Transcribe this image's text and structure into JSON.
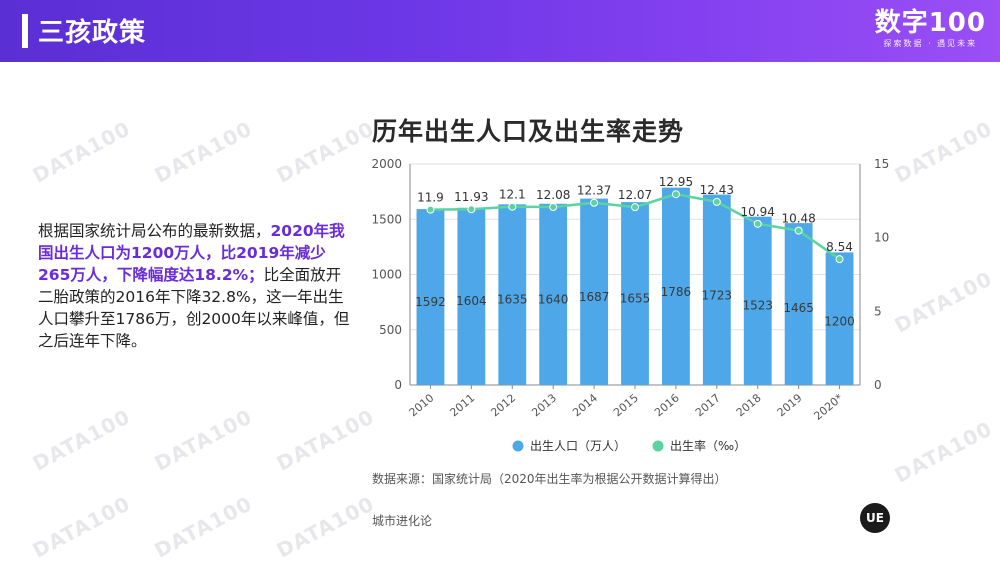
{
  "header": {
    "title": "三孩政策",
    "logo_main": "数字100",
    "logo_sub": "探索数据 · 遇见未来"
  },
  "watermark_text": "DATA100",
  "description": {
    "part1": "根据国家统计局公布的最新数据，",
    "highlight": "2020年我国出生人口为1200万人，比2019年减少265万人，下降幅度达18.2%；",
    "part2": "比全面放开二胎政策的2016年下降32.8%，这一年出生人口攀升至1786万，创2000年以来峰值，但之后连年下降。"
  },
  "chart_data": {
    "type": "bar",
    "title": "历年出生人口及出生率走势",
    "categories": [
      "2010",
      "2011",
      "2012",
      "2013",
      "2014",
      "2015",
      "2016",
      "2017",
      "2018",
      "2019",
      "2020*"
    ],
    "series": [
      {
        "name": "出生人口（万人）",
        "type": "bar",
        "axis": "left",
        "color": "#4da7e8",
        "values": [
          1592,
          1604,
          1635,
          1640,
          1687,
          1655,
          1786,
          1723,
          1523,
          1465,
          1200
        ]
      },
      {
        "name": "出生率（‰）",
        "type": "line",
        "axis": "right",
        "color": "#5ad3a2",
        "values": [
          11.9,
          11.93,
          12.1,
          12.08,
          12.37,
          12.07,
          12.95,
          12.43,
          10.94,
          10.48,
          8.54
        ]
      }
    ],
    "ylim_left": [
      0,
      2000
    ],
    "yticks_left": [
      0,
      500,
      1000,
      1500,
      2000
    ],
    "ylim_right": [
      0,
      15
    ],
    "yticks_right": [
      0,
      5,
      10,
      15
    ],
    "grid": true,
    "legend_position": "bottom"
  },
  "source": "数据来源：国家统计局（2020年出生率为根据公开数据计算得出）",
  "brand": "城市进化论",
  "brand_logo": "UE"
}
